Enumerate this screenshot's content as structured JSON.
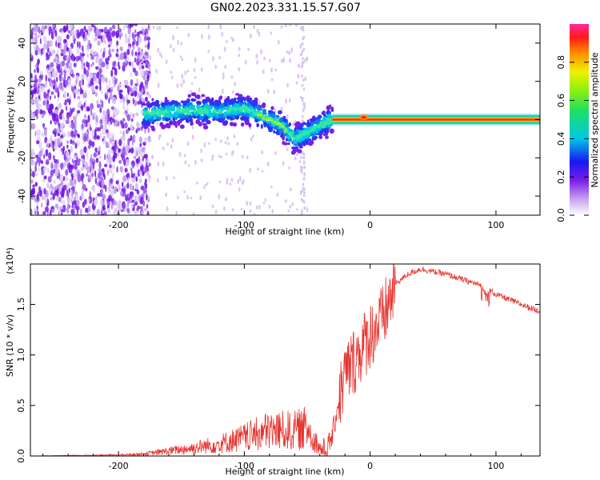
{
  "title": "GN02.2023.331.15.57.G07",
  "chart_data": [
    {
      "type": "heatmap",
      "xlabel": "Height of straight line (km)",
      "ylabel": "Frequency (Hz)",
      "xlim": [
        -270,
        135
      ],
      "ylim": [
        -50,
        50
      ],
      "xticks": [
        -200,
        -100,
        0,
        100
      ],
      "yticks": [
        -40,
        -20,
        0,
        20,
        40
      ],
      "colorbar": {
        "label": "Normalized spectral amplitude",
        "range": [
          0,
          1
        ],
        "ticks": [
          0.0,
          0.2,
          0.4,
          0.6,
          0.8
        ]
      },
      "center_track": [
        {
          "x": -180,
          "y": 3
        },
        {
          "x": -160,
          "y": 4
        },
        {
          "x": -140,
          "y": 5
        },
        {
          "x": -120,
          "y": 4
        },
        {
          "x": -100,
          "y": 6
        },
        {
          "x": -90,
          "y": 3
        },
        {
          "x": -80,
          "y": 0
        },
        {
          "x": -70,
          "y": -3
        },
        {
          "x": -60,
          "y": -10
        },
        {
          "x": -50,
          "y": -7
        },
        {
          "x": -40,
          "y": -3
        },
        {
          "x": -30,
          "y": 0
        },
        {
          "x": -10,
          "y": 1
        },
        {
          "x": 0,
          "y": 0
        },
        {
          "x": 135,
          "y": 0
        }
      ]
    },
    {
      "type": "line",
      "xlabel": "Height of straight line (km)",
      "ylabel": "SNR (10 * v/v)",
      "scale_label": "(x10⁴)",
      "xlim": [
        -270,
        135
      ],
      "ylim": [
        0,
        1.9
      ],
      "xticks": [
        -200,
        -100,
        0,
        100
      ],
      "yticks": [
        "0.0",
        "0.5",
        "1.0",
        "1.5"
      ],
      "ytick_values": [
        0,
        0.5,
        1.0,
        1.5
      ],
      "series": [
        {
          "color": "#e8322d",
          "x": [
            -270,
            -200,
            -180,
            -160,
            -140,
            -120,
            -100,
            -80,
            -60,
            -50,
            -40,
            -35,
            -30,
            -25,
            -20,
            -10,
            0,
            10,
            20,
            30,
            40,
            60,
            80,
            90,
            100,
            120,
            135
          ],
          "values": [
            0.0,
            0.01,
            0.02,
            0.05,
            0.08,
            0.12,
            0.18,
            0.25,
            0.25,
            0.28,
            0.08,
            0.05,
            0.2,
            0.55,
            0.8,
            1.0,
            1.2,
            1.35,
            1.7,
            1.8,
            1.85,
            1.8,
            1.72,
            1.68,
            1.6,
            1.5,
            1.43
          ]
        }
      ]
    }
  ]
}
